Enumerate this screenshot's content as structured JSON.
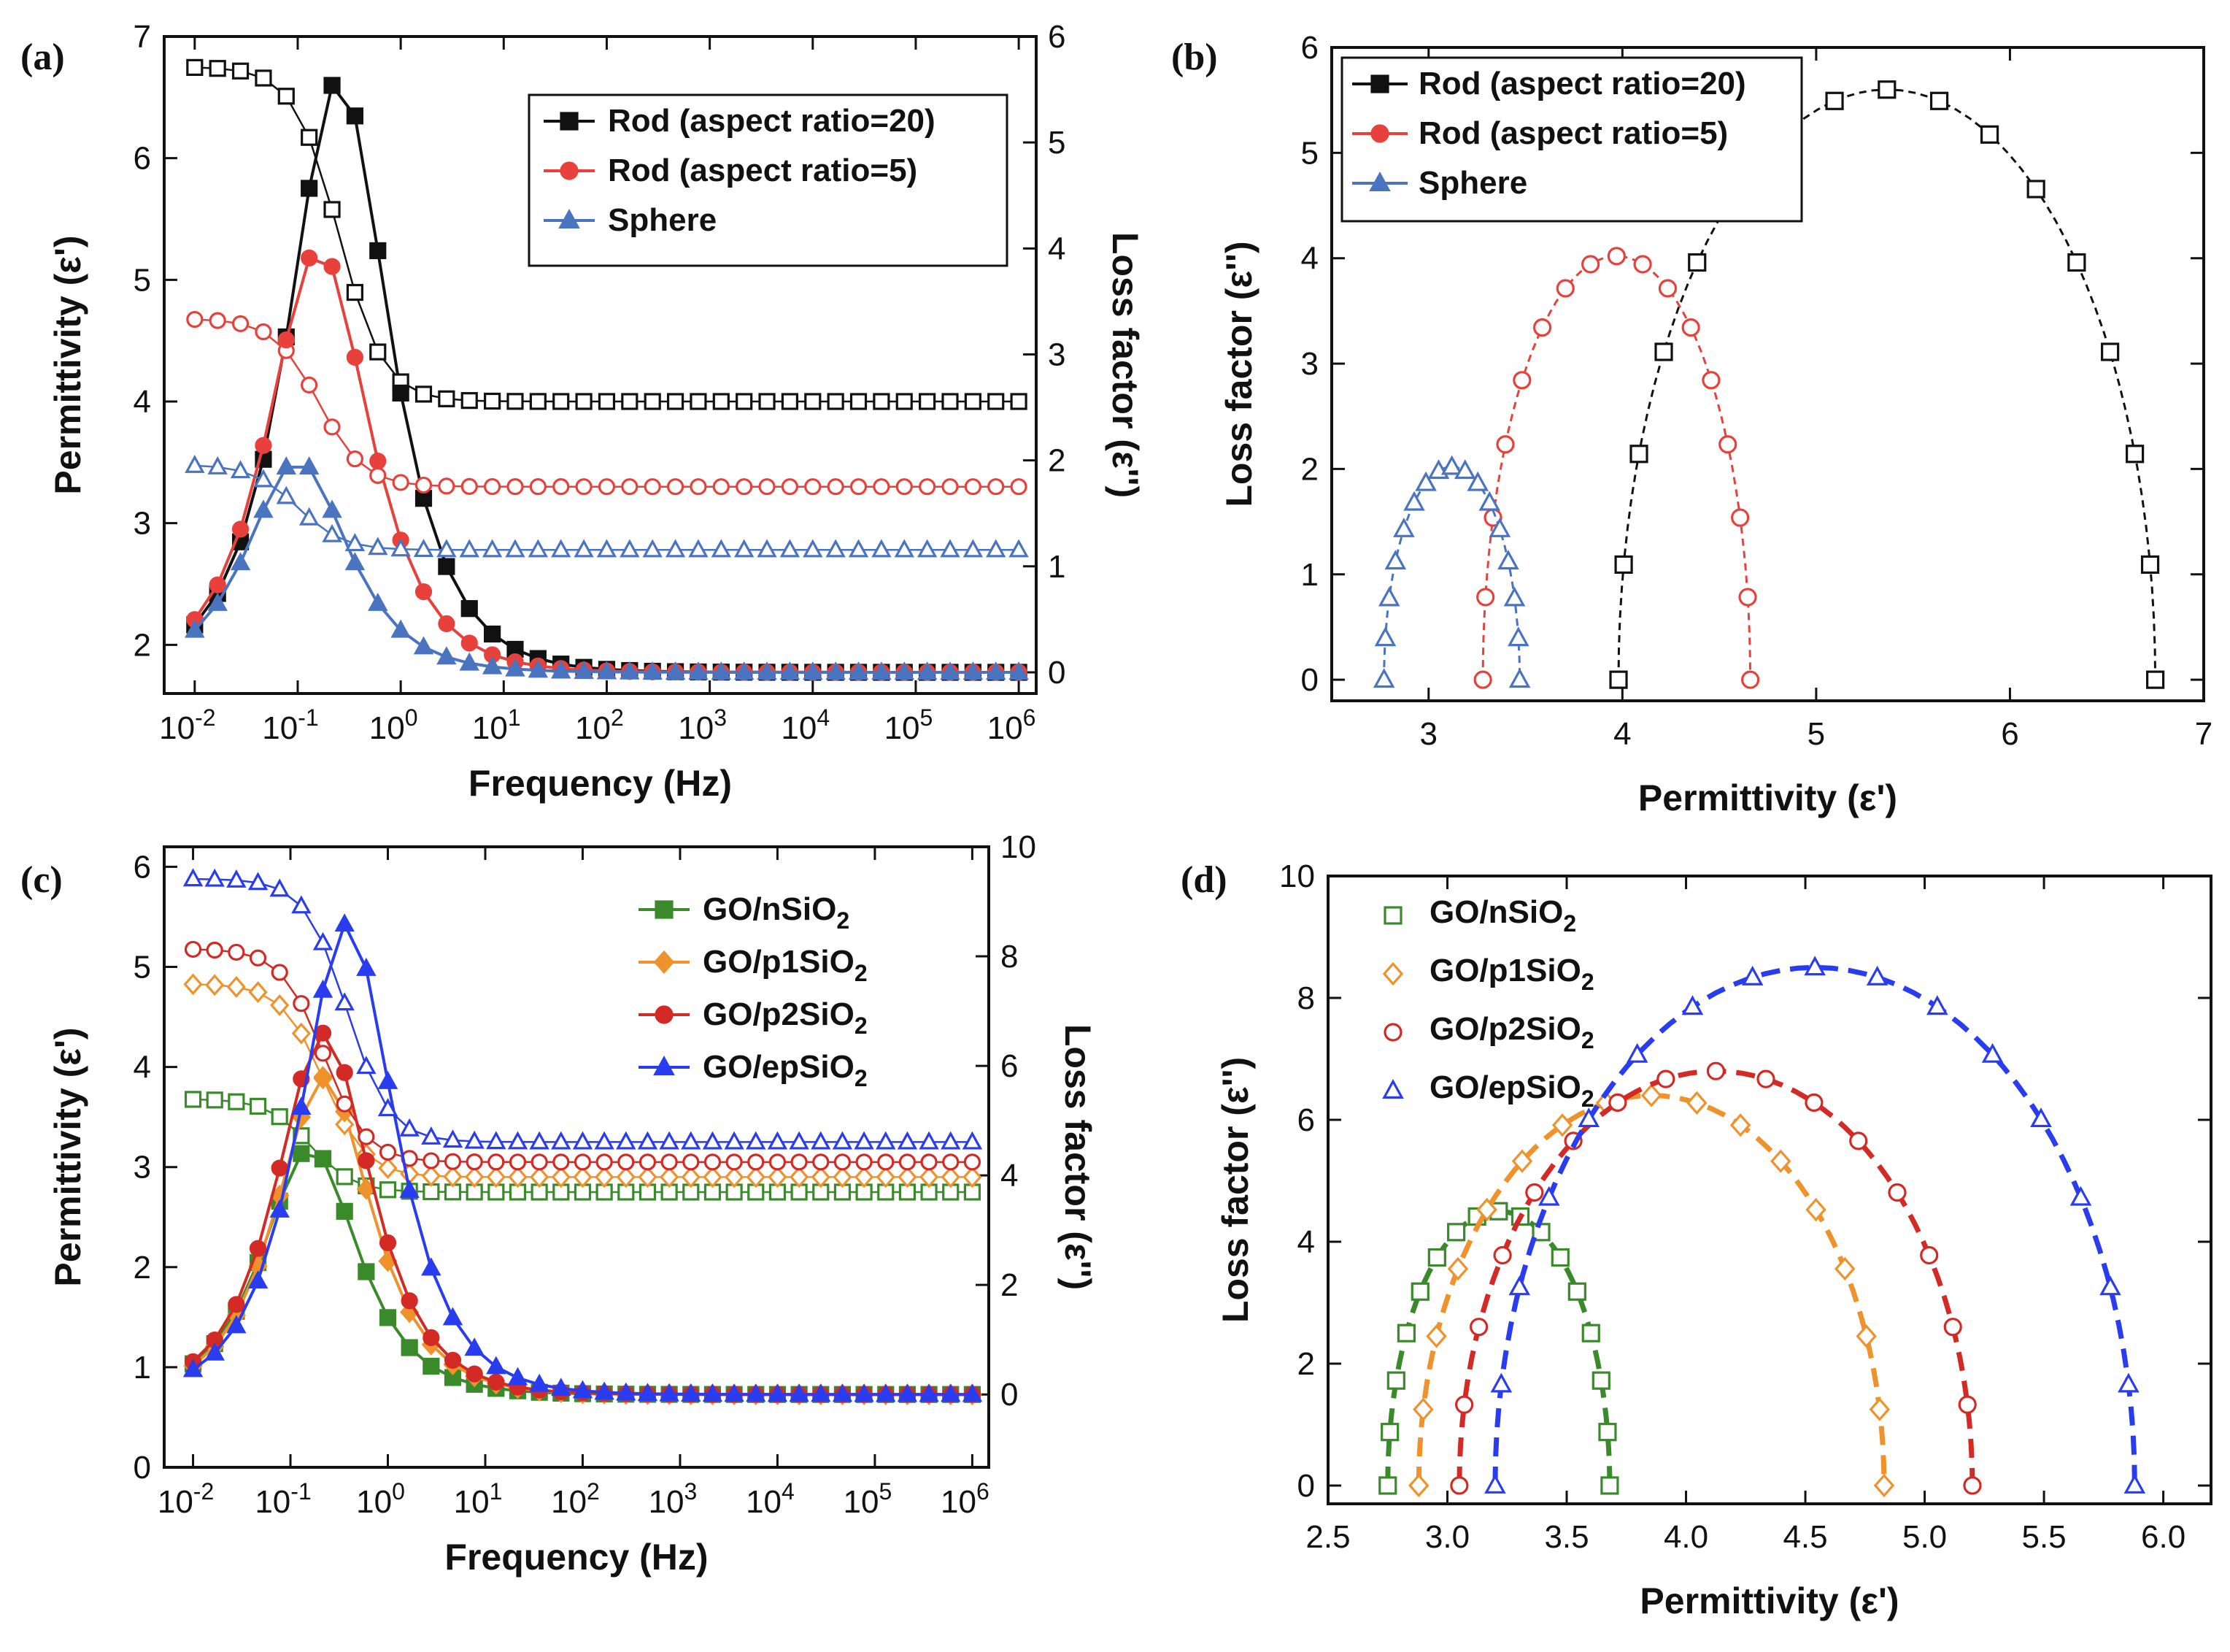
{
  "colors": {
    "black": "#111111",
    "red": "#e8413c",
    "blue": "#4a73c0",
    "green": "#3a8a2c",
    "orange": "#f0922c",
    "darkred": "#d42a25",
    "brightblue": "#2a3cf0"
  },
  "chart_data": [
    {
      "panel": "a",
      "type": "line",
      "xscale": "log",
      "xlabel": "Frequency (Hz)",
      "ylabel": "Permittivity (ε')",
      "y2label": "Loss factor (ε'')",
      "xlim": [
        0.01,
        1000000
      ],
      "ylim": [
        1.6,
        7
      ],
      "y2lim": [
        -0.2,
        6
      ],
      "xticks": [
        "10-2",
        "10-1",
        "100",
        "101",
        "102",
        "103",
        "104",
        "105",
        "106"
      ],
      "yticks": [
        2,
        3,
        4,
        5,
        6,
        7
      ],
      "y2ticks": [
        0,
        1,
        2,
        3,
        4,
        5,
        6
      ],
      "legend_position": "top-right",
      "series": [
        {
          "name": "Rod (aspect ratio=20)",
          "color": "#111111",
          "marker": "square",
          "perm_at_low_freq": 6.75,
          "perm_at_high_freq": 4.0,
          "loss_peak": 5.6,
          "peak_freq": 0.25
        },
        {
          "name": "Rod (aspect ratio=5)",
          "color": "#e8413c",
          "marker": "circle",
          "perm_at_low_freq": 4.68,
          "perm_at_high_freq": 3.3,
          "loss_peak": 4.0,
          "peak_freq": 0.16
        },
        {
          "name": "Sphere",
          "color": "#4a73c0",
          "marker": "triangle",
          "perm_at_low_freq": 3.48,
          "perm_at_high_freq": 2.78,
          "loss_peak": 2.0,
          "peak_freq": 0.1
        }
      ]
    },
    {
      "panel": "b",
      "type": "scatter",
      "xlabel": "Permittivity (ε')",
      "ylabel": "Loss factor (ε'')",
      "xlim": [
        2.5,
        7
      ],
      "ylim": [
        -0.2,
        6
      ],
      "xticks": [
        3,
        4,
        5,
        6,
        7
      ],
      "yticks": [
        0,
        1,
        2,
        3,
        4,
        5,
        6
      ],
      "legend_position": "top-left",
      "series": [
        {
          "name": "Rod (aspect ratio=20)",
          "color": "#111111",
          "marker": "square",
          "eps_inf": 3.98,
          "eps_s": 6.75,
          "peak": 5.6
        },
        {
          "name": "Rod (aspect ratio=5)",
          "color": "#e8413c",
          "marker": "circle",
          "eps_inf": 3.28,
          "eps_s": 4.66,
          "peak": 4.02
        },
        {
          "name": "Sphere",
          "color": "#4a73c0",
          "marker": "triangle",
          "eps_inf": 2.77,
          "eps_s": 3.47,
          "peak": 2.02
        }
      ]
    },
    {
      "panel": "c",
      "type": "line",
      "xscale": "log",
      "xlabel": "Frequency (Hz)",
      "ylabel": "Permittivity (ε')",
      "y2label": "Loss factor (ε'')",
      "xlim": [
        0.01,
        1000000
      ],
      "ylim": [
        0,
        6.2
      ],
      "y2lim": [
        -1.33,
        10
      ],
      "xticks": [
        "10-2",
        "10-1",
        "100",
        "101",
        "102",
        "103",
        "104",
        "105",
        "106"
      ],
      "yticks": [
        0,
        1,
        2,
        3,
        4,
        5,
        6
      ],
      "y2ticks": [
        0,
        2,
        4,
        6,
        8,
        10
      ],
      "legend_position": "top-right",
      "series": [
        {
          "name": "GO/nSiO₂",
          "color": "#3a8a2c",
          "marker": "square",
          "perm_at_low_freq": 3.68,
          "perm_at_high_freq": 2.75,
          "loss_peak": 4.5,
          "peak_freq": 0.16
        },
        {
          "name": "GO/p1SiO₂",
          "color": "#f0922c",
          "marker": "diamond",
          "perm_at_low_freq": 4.83,
          "perm_at_high_freq": 2.9,
          "loss_peak": 5.8,
          "peak_freq": 0.22
        },
        {
          "name": "GO/p2SiO₂",
          "color": "#d42a25",
          "marker": "circle",
          "perm_at_low_freq": 5.18,
          "perm_at_high_freq": 3.05,
          "loss_peak": 6.6,
          "peak_freq": 0.22
        },
        {
          "name": "GO/epSiO₂",
          "color": "#2a3cf0",
          "marker": "triangle",
          "perm_at_low_freq": 5.88,
          "perm_at_high_freq": 3.25,
          "loss_peak": 8.6,
          "peak_freq": 0.38
        }
      ]
    },
    {
      "panel": "d",
      "type": "scatter",
      "xlabel": "Permittivity (ε')",
      "ylabel": "Loss factor (ε'')",
      "xlim": [
        2.5,
        6.2
      ],
      "ylim": [
        -0.3,
        10
      ],
      "xticks": [
        "2.5",
        "3.0",
        "3.5",
        "4.0",
        "4.5",
        "5.0",
        "5.5",
        "6.0"
      ],
      "yticks": [
        0,
        2,
        4,
        6,
        8,
        10
      ],
      "legend_position": "top-left",
      "series": [
        {
          "name": "GO/nSiO₂",
          "color": "#3a8a2c",
          "marker": "square",
          "eps_inf": 2.75,
          "eps_s": 3.68,
          "peak": 4.5
        },
        {
          "name": "GO/p1SiO₂",
          "color": "#f0922c",
          "marker": "diamond",
          "eps_inf": 2.88,
          "eps_s": 4.83,
          "peak": 6.4
        },
        {
          "name": "GO/p2SiO₂",
          "color": "#d42a25",
          "marker": "circle",
          "eps_inf": 3.05,
          "eps_s": 5.2,
          "peak": 6.8
        },
        {
          "name": "GO/epSiO₂",
          "color": "#2a3cf0",
          "marker": "triangle",
          "eps_inf": 3.2,
          "eps_s": 5.88,
          "peak": 8.5
        }
      ]
    }
  ],
  "labels": {
    "a": "(a)",
    "b": "(b)",
    "c": "(c)",
    "d": "(d)"
  }
}
